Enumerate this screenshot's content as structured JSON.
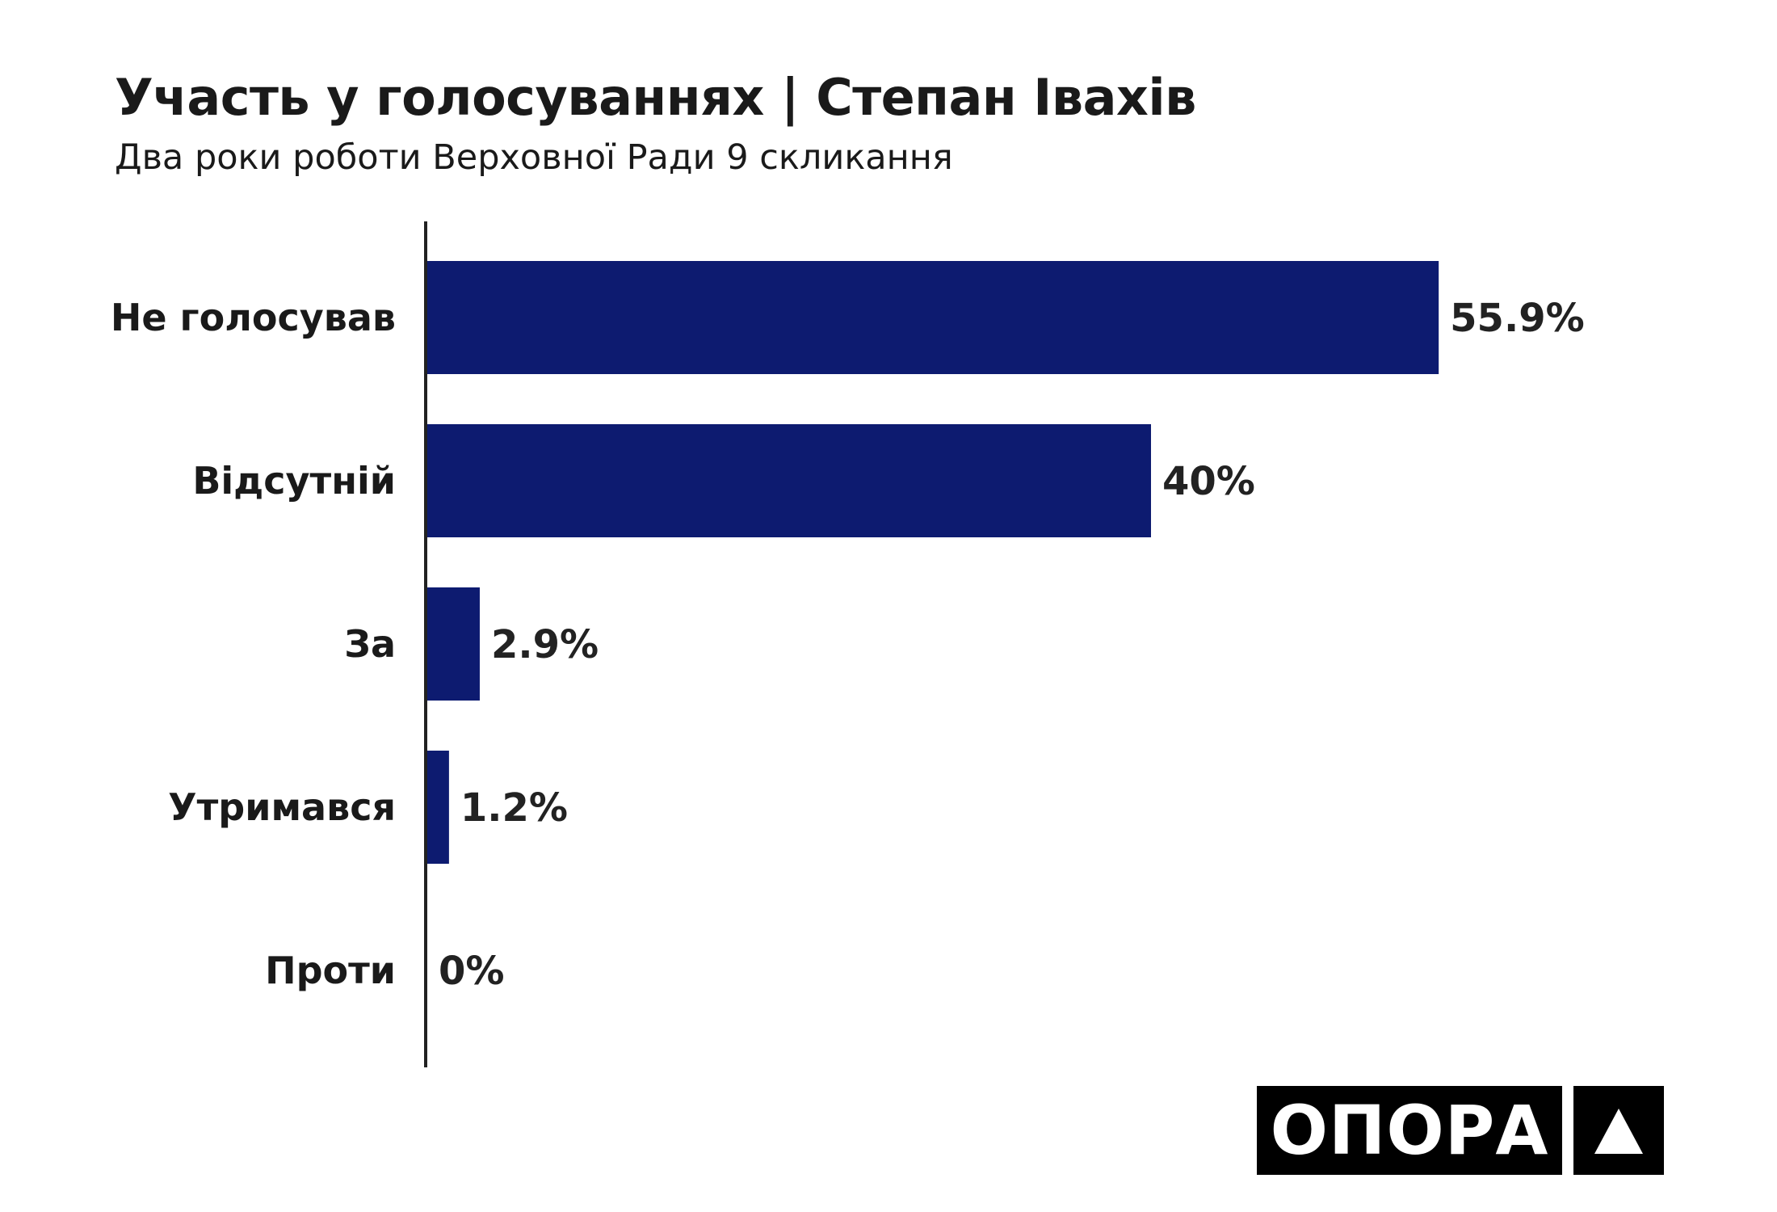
{
  "chart_data": {
    "type": "bar",
    "orientation": "horizontal",
    "title": "Участь у голосуваннях | Степан Івахів",
    "subtitle": "Два роки роботи Верховної Ради 9 скликання",
    "categories": [
      "Не голосував",
      "Відсутній",
      "За",
      "Утримався",
      "Проти"
    ],
    "values": [
      55.9,
      40,
      2.9,
      1.2,
      0
    ],
    "value_labels": [
      "55.9%",
      "40%",
      "2.9%",
      "1.2%",
      "0%"
    ],
    "xlim": [
      0,
      60
    ],
    "grid": false,
    "bar_color": "#0d1b70"
  },
  "logo": {
    "text": "ОПОРА"
  }
}
